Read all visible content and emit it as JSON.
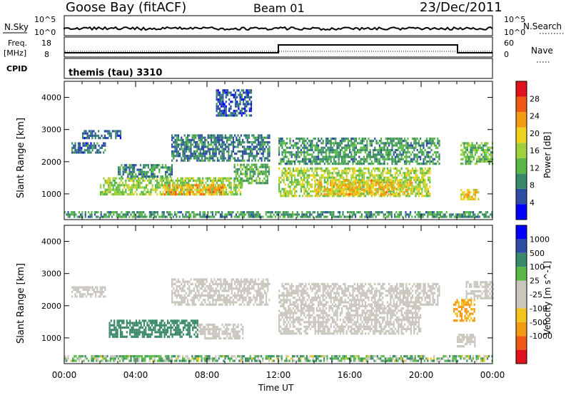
{
  "header": {
    "station": "Goose Bay (fitACF)",
    "beam": "Beam 01",
    "date": "23/Dec/2011"
  },
  "top_panels": {
    "nsky_label": "N.Sky",
    "nsky_ticks": [
      "10^5",
      "10^0"
    ],
    "nsearch_label": "N.Search",
    "nsearch_ticks": [
      "10^5",
      "10^0"
    ],
    "freq_label": "Freq.",
    "freq_unit": "[MHz]",
    "freq_ticks": [
      "18",
      "8"
    ],
    "nave_label": "Nave",
    "nave_ticks": [
      "60",
      "0"
    ],
    "cpid_label": "CPID",
    "cpid_text": "themis (tau) 3310"
  },
  "colors": {
    "power_scale": [
      "#0000ff",
      "#2c4fa3",
      "#3a8a6a",
      "#58b848",
      "#9fd23a",
      "#f0d21e",
      "#f39a14",
      "#ee5a14",
      "#e0121c"
    ],
    "velocity_scale": [
      "#e0121c",
      "#ee5a14",
      "#f39a14",
      "#f3c41c",
      "#c9c6bd",
      "#c9c6bd",
      "#58b848",
      "#3a8a6a",
      "#2c4fa3",
      "#0000ff"
    ]
  },
  "chart_data": [
    {
      "type": "heatmap",
      "title": "",
      "xlabel": "",
      "ylabel": "Slant Range [km]",
      "x_ticks": [
        "00:00",
        "04:00",
        "08:00",
        "12:00",
        "16:00",
        "20:00",
        "00:00"
      ],
      "y_ticks": [
        "1000",
        "2000",
        "3000",
        "4000"
      ],
      "ylim": [
        200,
        4500
      ],
      "colorbar_label": "Power [dB]",
      "colorbar_ticks": [
        "4",
        "8",
        "12",
        "16",
        "20",
        "24",
        "28"
      ],
      "clim": [
        0,
        32
      ],
      "bands": [
        {
          "t0": 0.4,
          "t1": 2.3,
          "r0": 2250,
          "r1": 2600,
          "level": 7
        },
        {
          "t0": 1.0,
          "t1": 3.2,
          "r0": 2700,
          "r1": 2950,
          "level": 6
        },
        {
          "t0": 2.0,
          "t1": 10.0,
          "r0": 950,
          "r1": 1500,
          "level": 15
        },
        {
          "t0": 5.5,
          "t1": 9.0,
          "r0": 950,
          "r1": 1250,
          "level": 22
        },
        {
          "t0": 3.0,
          "t1": 6.0,
          "r0": 1500,
          "r1": 1900,
          "level": 9
        },
        {
          "t0": 6.0,
          "t1": 11.5,
          "r0": 2000,
          "r1": 2800,
          "level": 8
        },
        {
          "t0": 9.5,
          "t1": 11.5,
          "r0": 1300,
          "r1": 1900,
          "level": 12
        },
        {
          "t0": 12.0,
          "t1": 20.5,
          "r0": 900,
          "r1": 1800,
          "level": 16
        },
        {
          "t0": 14.0,
          "t1": 19.5,
          "r0": 950,
          "r1": 1400,
          "level": 21
        },
        {
          "t0": 12.0,
          "t1": 21.0,
          "r0": 1900,
          "r1": 2700,
          "level": 10
        },
        {
          "t0": 22.2,
          "t1": 24.0,
          "r0": 1900,
          "r1": 2600,
          "level": 13
        },
        {
          "t0": 22.2,
          "t1": 23.2,
          "r0": 800,
          "r1": 1100,
          "level": 20
        },
        {
          "t0": 0.0,
          "t1": 24.0,
          "r0": 250,
          "r1": 450,
          "level": 10
        },
        {
          "t0": 8.5,
          "t1": 10.5,
          "r0": 3400,
          "r1": 4200,
          "level": 6
        }
      ]
    },
    {
      "type": "heatmap",
      "title": "",
      "xlabel": "Time UT",
      "ylabel": "Slant Range [km]",
      "x_ticks": [
        "00:00",
        "04:00",
        "08:00",
        "12:00",
        "16:00",
        "20:00",
        "00:00"
      ],
      "y_ticks": [
        "1000",
        "2000",
        "3000",
        "4000"
      ],
      "ylim": [
        200,
        4500
      ],
      "colorbar_label": "Velocity [m s^-1]",
      "colorbar_ticks": [
        "1000",
        "500",
        "100",
        "25",
        "-25",
        "-100",
        "-500",
        "-1000"
      ],
      "clim": [
        -1000,
        1000
      ],
      "bands": [
        {
          "t0": 0.4,
          "t1": 2.3,
          "r0": 2250,
          "r1": 2600,
          "level": 0
        },
        {
          "t0": 6.0,
          "t1": 11.5,
          "r0": 2000,
          "r1": 2800,
          "level": 0
        },
        {
          "t0": 2.5,
          "t1": 7.5,
          "r0": 1000,
          "r1": 1500,
          "level": 200
        },
        {
          "t0": 7.5,
          "t1": 10.0,
          "r0": 950,
          "r1": 1400,
          "level": 0
        },
        {
          "t0": 12.0,
          "t1": 20.0,
          "r0": 1100,
          "r1": 2000,
          "level": 0
        },
        {
          "t0": 12.0,
          "t1": 21.0,
          "r0": 2000,
          "r1": 2700,
          "level": 0
        },
        {
          "t0": 21.8,
          "t1": 23.0,
          "r0": 1500,
          "r1": 2200,
          "level": -150
        },
        {
          "t0": 22.5,
          "t1": 24.0,
          "r0": 2200,
          "r1": 2700,
          "level": 0
        },
        {
          "t0": 22.0,
          "t1": 23.0,
          "r0": 700,
          "r1": 1100,
          "level": 0
        },
        {
          "t0": 0.0,
          "t1": 24.0,
          "r0": 250,
          "r1": 450,
          "level": 60
        }
      ]
    }
  ]
}
